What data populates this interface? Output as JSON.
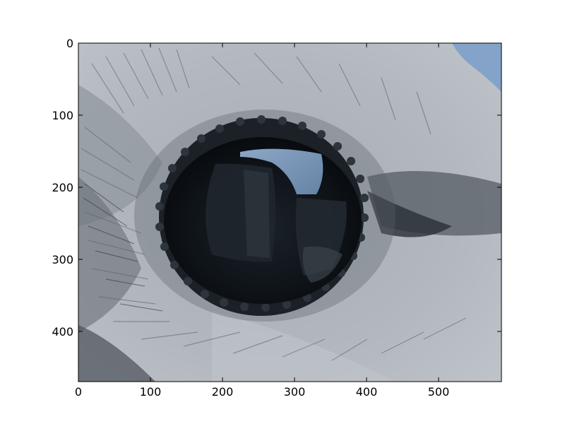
{
  "image": {
    "description_kind": "photo",
    "palette": {
      "feather_light": "#b4b9c0",
      "feather_mid": "#8f969e",
      "feather_dark": "#3a3f46",
      "eye_ring": "#1c2228",
      "pupil": "#0c1116",
      "sky_reflection": "#8aaad0",
      "sky_corner": "#7ea0c8"
    }
  },
  "axes": {
    "xticks": [
      "0",
      "100",
      "200",
      "300",
      "400",
      "500"
    ],
    "yticks": [
      "0",
      "100",
      "200",
      "300",
      "400"
    ],
    "xlim": [
      0,
      588
    ],
    "ylim": [
      470,
      0
    ]
  }
}
